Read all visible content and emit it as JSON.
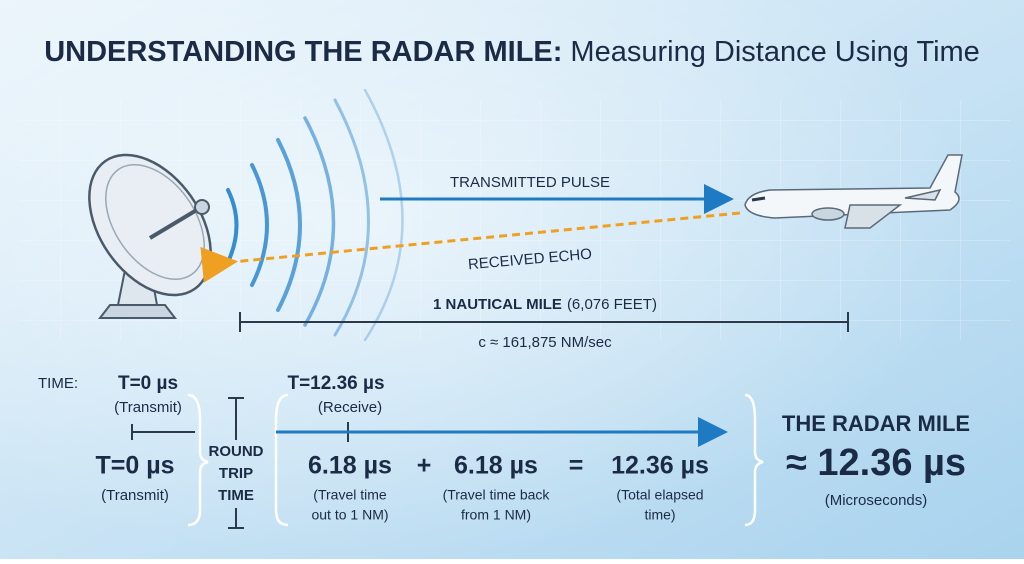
{
  "header": {
    "title_bold": "UNDERSTANDING THE RADAR MILE:",
    "title_rest": "Measuring Distance Using Time"
  },
  "diagram": {
    "transmitted": "TRANSMITTED PULSE",
    "received": "RECEIVED ECHO",
    "distance_bold": "1 NAUTICAL MILE",
    "distance_note": "(6,076 FEET)",
    "speed": "c ≈ 161,875 NM/sec"
  },
  "timeline": {
    "label": "TIME:",
    "start_time": "T=0 µs",
    "start_note": "(Transmit)",
    "end_time": "T=12.36 µs",
    "end_note": "(Receive)"
  },
  "equation": {
    "start_time": "T=0 µs",
    "start_note": "(Transmit)",
    "round_trip": [
      "ROUND",
      "TRIP",
      "TIME"
    ],
    "out_value": "6.18 µs",
    "out_note": [
      "(Travel time",
      "out to 1 NM)"
    ],
    "plus": "+",
    "back_value": "6.18 µs",
    "back_note": [
      "(Travel time back",
      "from 1 NM)"
    ],
    "equals": "=",
    "total_value": "12.36 µs",
    "total_note": [
      "(Total elapsed",
      "time)"
    ]
  },
  "result": {
    "title": "THE RADAR MILE",
    "value": "≈ 12.36 µs",
    "note": "(Microseconds)"
  }
}
